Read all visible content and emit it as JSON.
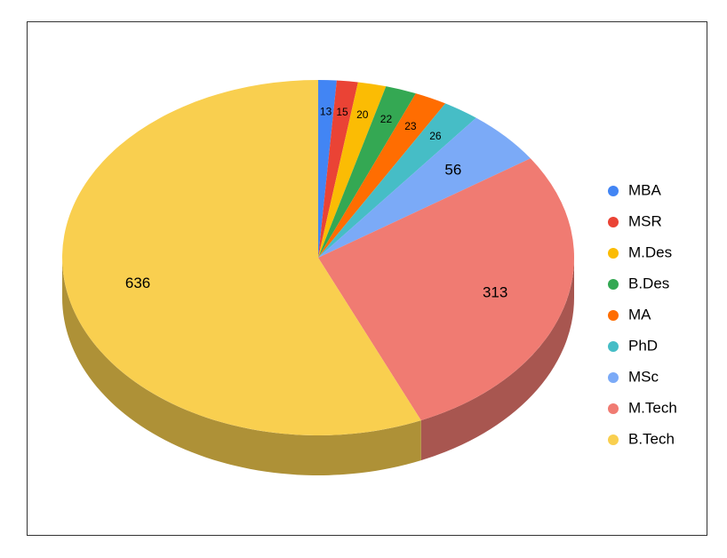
{
  "chart_data": {
    "type": "pie3d",
    "categories": [
      "MBA",
      "MSR",
      "M.Des",
      "B.Des",
      "MA",
      "PhD",
      "MSc",
      "M.Tech",
      "B.Tech"
    ],
    "values": [
      13,
      15,
      20,
      22,
      23,
      26,
      56,
      313,
      636
    ],
    "colors": [
      "#4285f4",
      "#ea4335",
      "#fbbc04",
      "#34a853",
      "#ff6d01",
      "#46bdc6",
      "#7baaf7",
      "#f07b72",
      "#f9cf4f"
    ],
    "legend": "right"
  }
}
